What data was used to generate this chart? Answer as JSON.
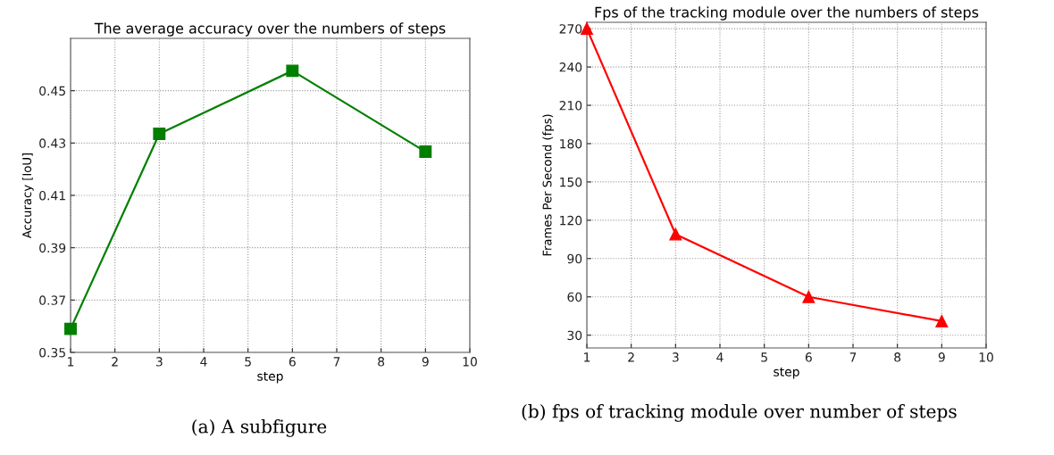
{
  "chart_data": [
    {
      "type": "line",
      "title": "The average accuracy over the numbers of steps",
      "xlabel": "step",
      "ylabel": "Accuracy [IoU]",
      "x": [
        1,
        3,
        6,
        9
      ],
      "series": [
        {
          "color": "#007f00",
          "values": [
            0.359,
            0.4335,
            0.4576,
            0.4267
          ]
        }
      ],
      "xlim": [
        1,
        10
      ],
      "xticks": [
        1,
        2,
        3,
        4,
        5,
        6,
        7,
        8,
        9,
        10
      ],
      "ylim": [
        0.35,
        0.47
      ],
      "yticks": [
        0.35,
        0.37,
        0.39,
        0.41,
        0.43,
        0.45
      ],
      "grid": true,
      "marker": "square",
      "line_style": "solid",
      "annotations": [
        "(a) A subfigure"
      ]
    },
    {
      "type": "line",
      "title": "Fps of the tracking module over the numbers of steps",
      "xlabel": "step",
      "ylabel": "Frames Per Second (fps)",
      "x": [
        1,
        3,
        6,
        9
      ],
      "series": [
        {
          "color": "#ff0000",
          "values": [
            270,
            109,
            60,
            41
          ]
        }
      ],
      "xlim": [
        1,
        10
      ],
      "xticks": [
        1,
        2,
        3,
        4,
        5,
        6,
        7,
        8,
        9,
        10
      ],
      "ylim": [
        20,
        275
      ],
      "yticks": [
        30,
        60,
        90,
        120,
        150,
        180,
        210,
        240,
        270
      ],
      "grid": true,
      "marker": "triangle",
      "line_style": "solid",
      "annotations": [
        "(b) fps of tracking module over number of steps"
      ]
    }
  ]
}
